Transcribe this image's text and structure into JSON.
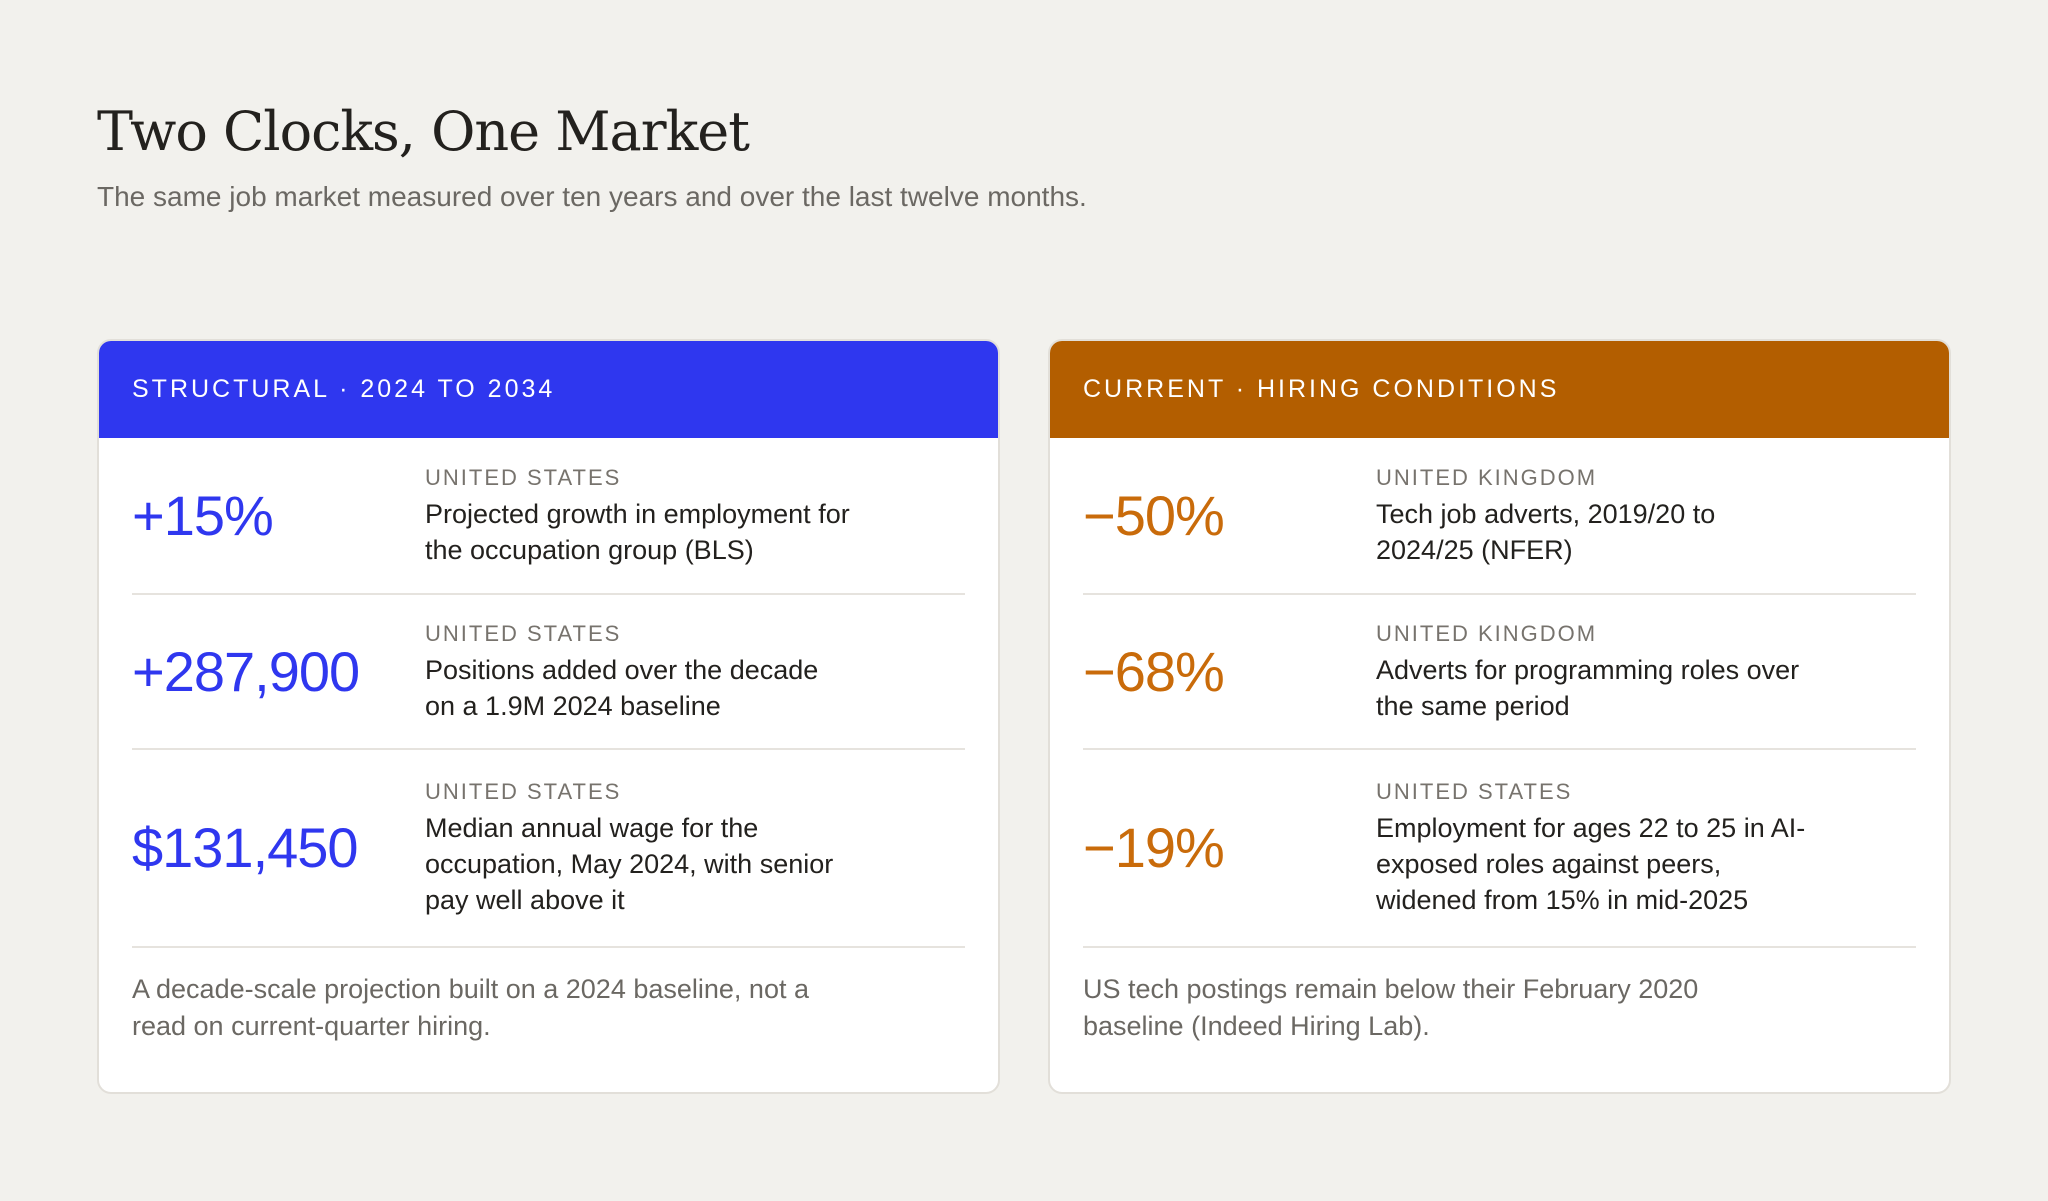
{
  "header": {
    "title": "Two Clocks, One Market",
    "subtitle": "The same job market measured over ten years and over the last twelve months."
  },
  "colors": {
    "background": "#f2f1ed",
    "structural_accent": "#2f37ef",
    "current_header": "#b35e00",
    "current_accent": "#c96b0a"
  },
  "structural": {
    "heading": "STRUCTURAL · 2024 TO 2034",
    "metrics": [
      {
        "value": "+15%",
        "region": "UNITED STATES",
        "description": "Projected growth in employment for the occupation group (BLS)"
      },
      {
        "value": "+287,900",
        "region": "UNITED STATES",
        "description": "Positions added over the decade on a 1.9M 2024 baseline"
      },
      {
        "value": "$131,450",
        "region": "UNITED STATES",
        "description": "Median annual wage for the occupation, May 2024, with senior pay well above it"
      }
    ],
    "note": "A decade-scale projection built on a 2024 baseline, not a read on current-quarter hiring."
  },
  "current": {
    "heading": "CURRENT · HIRING CONDITIONS",
    "metrics": [
      {
        "value": "−50%",
        "region": "UNITED KINGDOM",
        "description": "Tech job adverts, 2019/20 to 2024/25 (NFER)"
      },
      {
        "value": "−68%",
        "region": "UNITED KINGDOM",
        "description": "Adverts for programming roles over the same period"
      },
      {
        "value": "−19%",
        "region": "UNITED STATES",
        "description": "Employment for ages 22 to 25 in AI-exposed roles against peers, widened from 15% in mid-2025"
      }
    ],
    "note": "US tech postings remain below their February 2020 baseline (Indeed Hiring Lab)."
  }
}
